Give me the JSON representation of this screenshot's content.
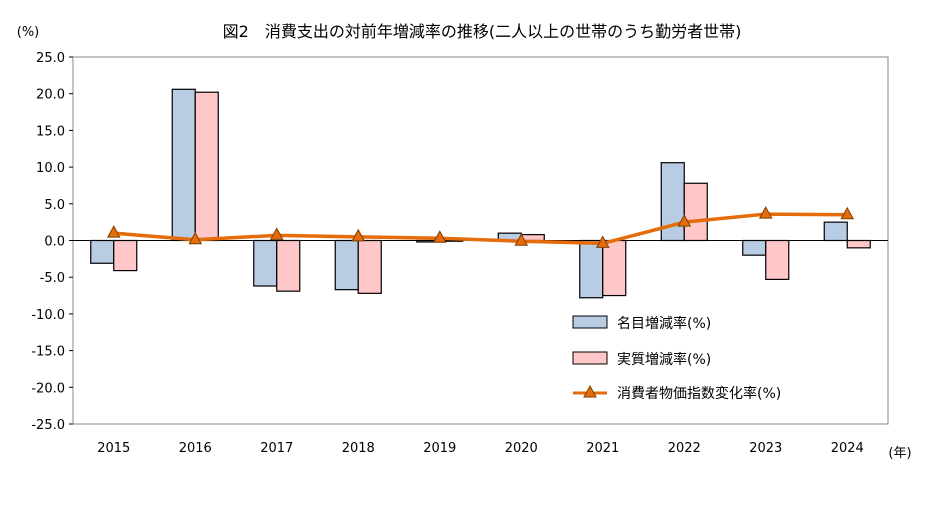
{
  "chart_data": {
    "type": "bar",
    "title": "図2　消費支出の対前年増減率の推移(二人以上の世帯のうち勤労者世帯)",
    "ylabel": "(%)",
    "xlabel": "(年)",
    "ylim": [
      -25.0,
      25.0
    ],
    "y_ticks": [
      "25.0",
      "20.0",
      "15.0",
      "10.0",
      "5.0",
      "0.0",
      "-5.0",
      "-10.0",
      "-15.0",
      "-20.0",
      "-25.0"
    ],
    "categories": [
      "2015",
      "2016",
      "2017",
      "2018",
      "2019",
      "2020",
      "2021",
      "2022",
      "2023",
      "2024"
    ],
    "grid": false,
    "legend_position": "bottom-right",
    "series": [
      {
        "name": "名目増減率(%)",
        "kind": "bar",
        "color": "#b8cce4",
        "values": [
          -3.1,
          20.6,
          -6.2,
          -6.7,
          -0.2,
          1.0,
          -7.8,
          10.6,
          -2.0,
          2.5
        ]
      },
      {
        "name": "実質増減率(%)",
        "kind": "bar",
        "color": "#ffc7c7",
        "values": [
          -4.1,
          20.2,
          -6.9,
          -7.2,
          -0.1,
          0.8,
          -7.5,
          7.8,
          -5.3,
          -1.0
        ]
      },
      {
        "name": "消費者物価指数変化率(%)",
        "kind": "line",
        "color": "#e46c0a",
        "values": [
          1.0,
          0.1,
          0.7,
          0.5,
          0.3,
          -0.1,
          -0.4,
          2.5,
          3.6,
          3.5
        ]
      }
    ]
  }
}
